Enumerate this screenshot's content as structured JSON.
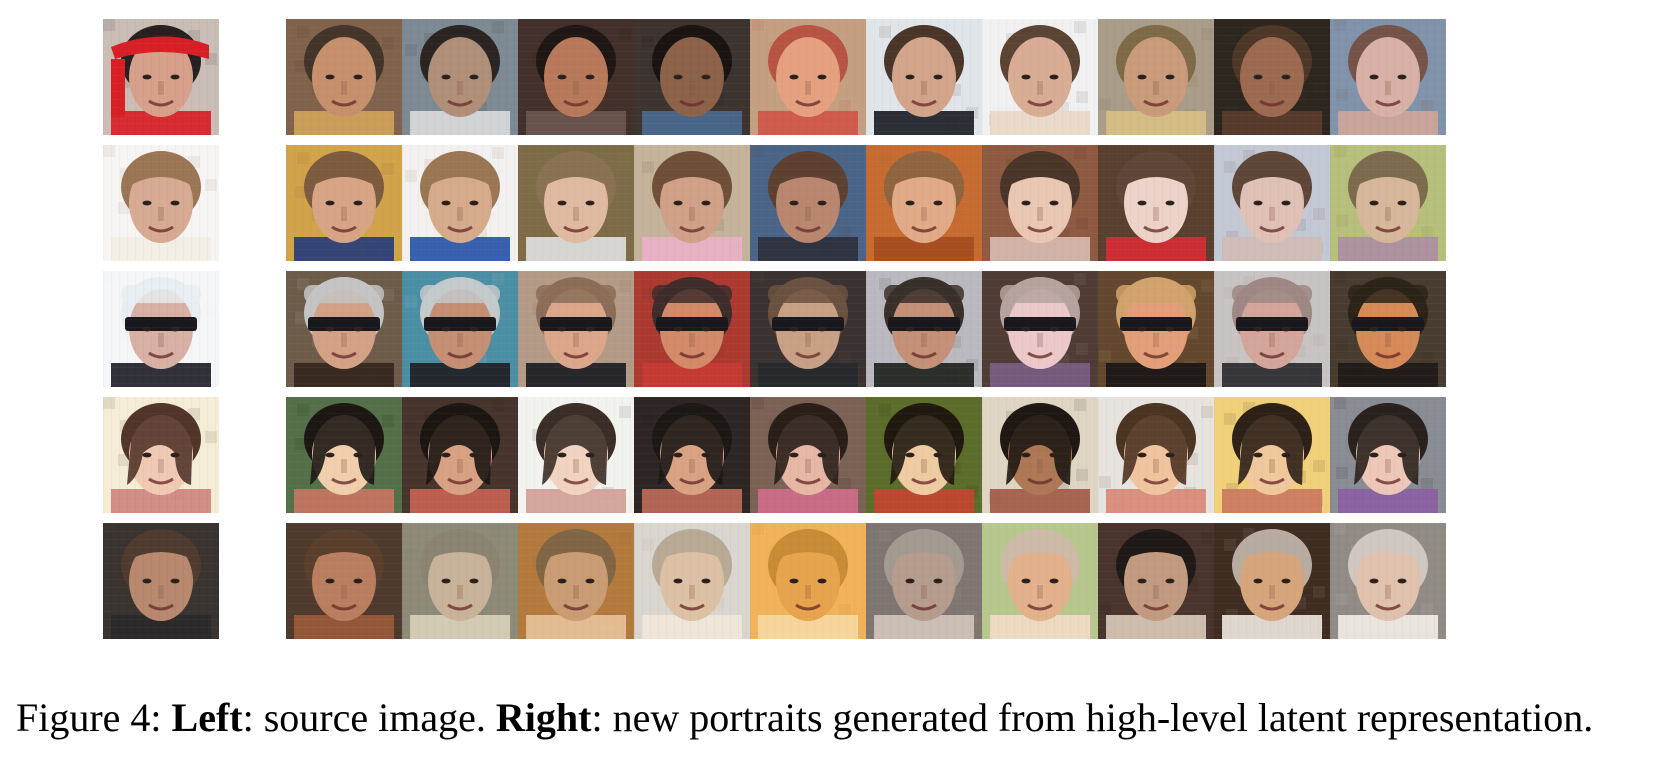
{
  "caption": {
    "figure_label": "Figure 4:",
    "left_term": "Left",
    "left_text": ": source image.",
    "right_term": "Right",
    "right_text": ": new portraits generated from high-level latent representation."
  },
  "rows": [
    {
      "subject": "man-red-bandana",
      "source": {
        "skin": "#d7a08a",
        "hair": "#262020",
        "bg": "#c9bdb6",
        "accent": "#d81f26"
      },
      "generated": [
        {
          "skin": "#c6906c",
          "hair": "#44352b",
          "bg": "#80624d",
          "accent": "#d0a35a"
        },
        {
          "skin": "#b08f78",
          "hair": "#2a2522",
          "bg": "#7d8993",
          "accent": "#d9d9d9"
        },
        {
          "skin": "#b8795a",
          "hair": "#1f1715",
          "bg": "#43302b",
          "accent": "#6b564f"
        },
        {
          "skin": "#8c6248",
          "hair": "#191411",
          "bg": "#3d3430",
          "accent": "#4a6a91"
        },
        {
          "skin": "#e4a07f",
          "hair": "#b85443",
          "bg": "#c59f82",
          "accent": "#cf5648"
        },
        {
          "skin": "#d2a48a",
          "hair": "#4a3529",
          "bg": "#dfe5e8",
          "accent": "#1c2026"
        },
        {
          "skin": "#d8ad94",
          "hair": "#5c4434",
          "bg": "#f1f1f1",
          "accent": "#e9d8c9"
        },
        {
          "skin": "#c99b7a",
          "hair": "#7f6a47",
          "bg": "#a99c89",
          "accent": "#d8bf84"
        },
        {
          "skin": "#9c6a50",
          "hair": "#4d3828",
          "bg": "#2d261f",
          "accent": "#5b3d2f"
        },
        {
          "skin": "#d8b0a6",
          "hair": "#765349",
          "bg": "#8193ab",
          "accent": "#cfa59b"
        }
      ]
    },
    {
      "subject": "young-boy",
      "source": {
        "skin": "#d7ab92",
        "hair": "#9b7655",
        "bg": "#f6f5f4",
        "accent": "#f2eee5"
      },
      "generated": [
        {
          "skin": "#d8a486",
          "hair": "#7d5b3f",
          "bg": "#d1a34a",
          "accent": "#273d7a"
        },
        {
          "skin": "#d5ab8c",
          "hair": "#9b7654",
          "bg": "#f3f1f0",
          "accent": "#2754a8"
        },
        {
          "skin": "#dfbaa0",
          "hair": "#8a7152",
          "bg": "#7d6c47",
          "accent": "#dedede"
        },
        {
          "skin": "#d0a087",
          "hair": "#6f4f37",
          "bg": "#c4b29a",
          "accent": "#e9b1c8"
        },
        {
          "skin": "#b9876f",
          "hair": "#5d4030",
          "bg": "#4a6588",
          "accent": "#2d2f3c"
        },
        {
          "skin": "#e1ab88",
          "hair": "#90643f",
          "bg": "#c76c31",
          "accent": "#a54d1f"
        },
        {
          "skin": "#e9c7b2",
          "hair": "#4a3529",
          "bg": "#8e5a42",
          "accent": "#d7bcb0"
        },
        {
          "skin": "#ecd2c9",
          "hair": "#5f4638",
          "bg": "#5a402e",
          "accent": "#d62c35"
        },
        {
          "skin": "#dfc1b5",
          "hair": "#5e4738",
          "bg": "#c3c8d5",
          "accent": "#d3bcb4"
        },
        {
          "skin": "#d6b79a",
          "hair": "#7c6b4d",
          "bg": "#b7c07a",
          "accent": "#ac8ea3"
        }
      ]
    },
    {
      "subject": "man-cap-sunglasses",
      "source": {
        "skin": "#d8b1a4",
        "hair": "#e7edf1",
        "bg": "#f4f6f8",
        "accent": "#202128"
      },
      "generated": [
        {
          "skin": "#d3a185",
          "hair": "#c4c4c4",
          "bg": "#6d5c49",
          "accent": "#36271f"
        },
        {
          "skin": "#c48f73",
          "hair": "#c4c9cb",
          "bg": "#4b8fa4",
          "accent": "#1f2125"
        },
        {
          "skin": "#dca68b",
          "hair": "#8b6d58",
          "bg": "#b49b87",
          "accent": "#1c1d23"
        },
        {
          "skin": "#d28a68",
          "hair": "#3e2d2a",
          "bg": "#ad3a31",
          "accent": "#c73c33"
        },
        {
          "skin": "#c8a086",
          "hair": "#6b5140",
          "bg": "#3a3331",
          "accent": "#27292d"
        },
        {
          "skin": "#c49077",
          "hair": "#39302a",
          "bg": "#b9b9bf",
          "accent": "#20241f"
        },
        {
          "skin": "#ebc8ca",
          "hair": "#b7a39e",
          "bg": "#4f3c34",
          "accent": "#7b5e86"
        },
        {
          "skin": "#e29e79",
          "hair": "#d1a26b",
          "bg": "#63482f",
          "accent": "#1a1718"
        },
        {
          "skin": "#d4a59a",
          "hair": "#9e8884",
          "bg": "#c8c4c3",
          "accent": "#2a2a31"
        },
        {
          "skin": "#d58a58",
          "hair": "#2d2319",
          "bg": "#493d31",
          "accent": "#1f1a18"
        }
      ]
    },
    {
      "subject": "smiling-woman",
      "source": {
        "skin": "#f0c9b2",
        "hair": "#52352a",
        "bg": "#f4ecd5",
        "accent": "#ce8680"
      },
      "generated": [
        {
          "skin": "#f1cfad",
          "hair": "#1d1714",
          "bg": "#547048",
          "accent": "#c77563"
        },
        {
          "skin": "#d7a183",
          "hair": "#1c1612",
          "bg": "#47342d",
          "accent": "#c76355"
        },
        {
          "skin": "#f0d4c1",
          "hair": "#3b2e27",
          "bg": "#f2f2ef",
          "accent": "#d2a096"
        },
        {
          "skin": "#d9a283",
          "hair": "#1c1815",
          "bg": "#2d2624",
          "accent": "#bf6a5a"
        },
        {
          "skin": "#e5b7a4",
          "hair": "#2a1e19",
          "bg": "#7b6254",
          "accent": "#cf6d8b"
        },
        {
          "skin": "#efcba2",
          "hair": "#20190f",
          "bg": "#5c6d2b",
          "accent": "#c34532"
        },
        {
          "skin": "#ae7756",
          "hair": "#1e1813",
          "bg": "#ded5c3",
          "accent": "#9f5b47"
        },
        {
          "skin": "#f0c49f",
          "hair": "#4b3422",
          "bg": "#e7e3df",
          "accent": "#d98975"
        },
        {
          "skin": "#f0c89c",
          "hair": "#2d2017",
          "bg": "#f0d17a",
          "accent": "#cb7a5f"
        },
        {
          "skin": "#edc7b8",
          "hair": "#29211d",
          "bg": "#8a8c94",
          "accent": "#8b5fa4"
        }
      ]
    },
    {
      "subject": "older-man-smiling",
      "source": {
        "skin": "#b8886f",
        "hair": "#4f3b2f",
        "bg": "#3a3431",
        "accent": "#2b2929"
      },
      "generated": [
        {
          "skin": "#b97e5f",
          "hair": "#5b3f2d",
          "bg": "#4e3b2e",
          "accent": "#9a5b3a"
        },
        {
          "skin": "#c8b299",
          "hair": "#8c8472",
          "bg": "#8d8a78",
          "accent": "#d9cfba"
        },
        {
          "skin": "#c99c73",
          "hair": "#806645",
          "bg": "#b47a3d",
          "accent": "#e8c198"
        },
        {
          "skin": "#dcc1a4",
          "hair": "#b8aa94",
          "bg": "#d8d6cf",
          "accent": "#f1e7da"
        },
        {
          "skin": "#e7a44c",
          "hair": "#c98c36",
          "bg": "#f0b35a",
          "accent": "#f8d8a1"
        },
        {
          "skin": "#b69c8d",
          "hair": "#a39a92",
          "bg": "#7f7672",
          "accent": "#d1c4bb"
        },
        {
          "skin": "#e3b18c",
          "hair": "#cdbba8",
          "bg": "#b7c88e",
          "accent": "#f2dbc7"
        },
        {
          "skin": "#c29a80",
          "hair": "#1f1a17",
          "bg": "#49352d",
          "accent": "#d8c9b8"
        },
        {
          "skin": "#d7a57b",
          "hair": "#b8aca2",
          "bg": "#3f2d22",
          "accent": "#ede5dd"
        },
        {
          "skin": "#e0c1ad",
          "hair": "#cfc7c0",
          "bg": "#918b86",
          "accent": "#f1ebe5"
        }
      ]
    }
  ]
}
